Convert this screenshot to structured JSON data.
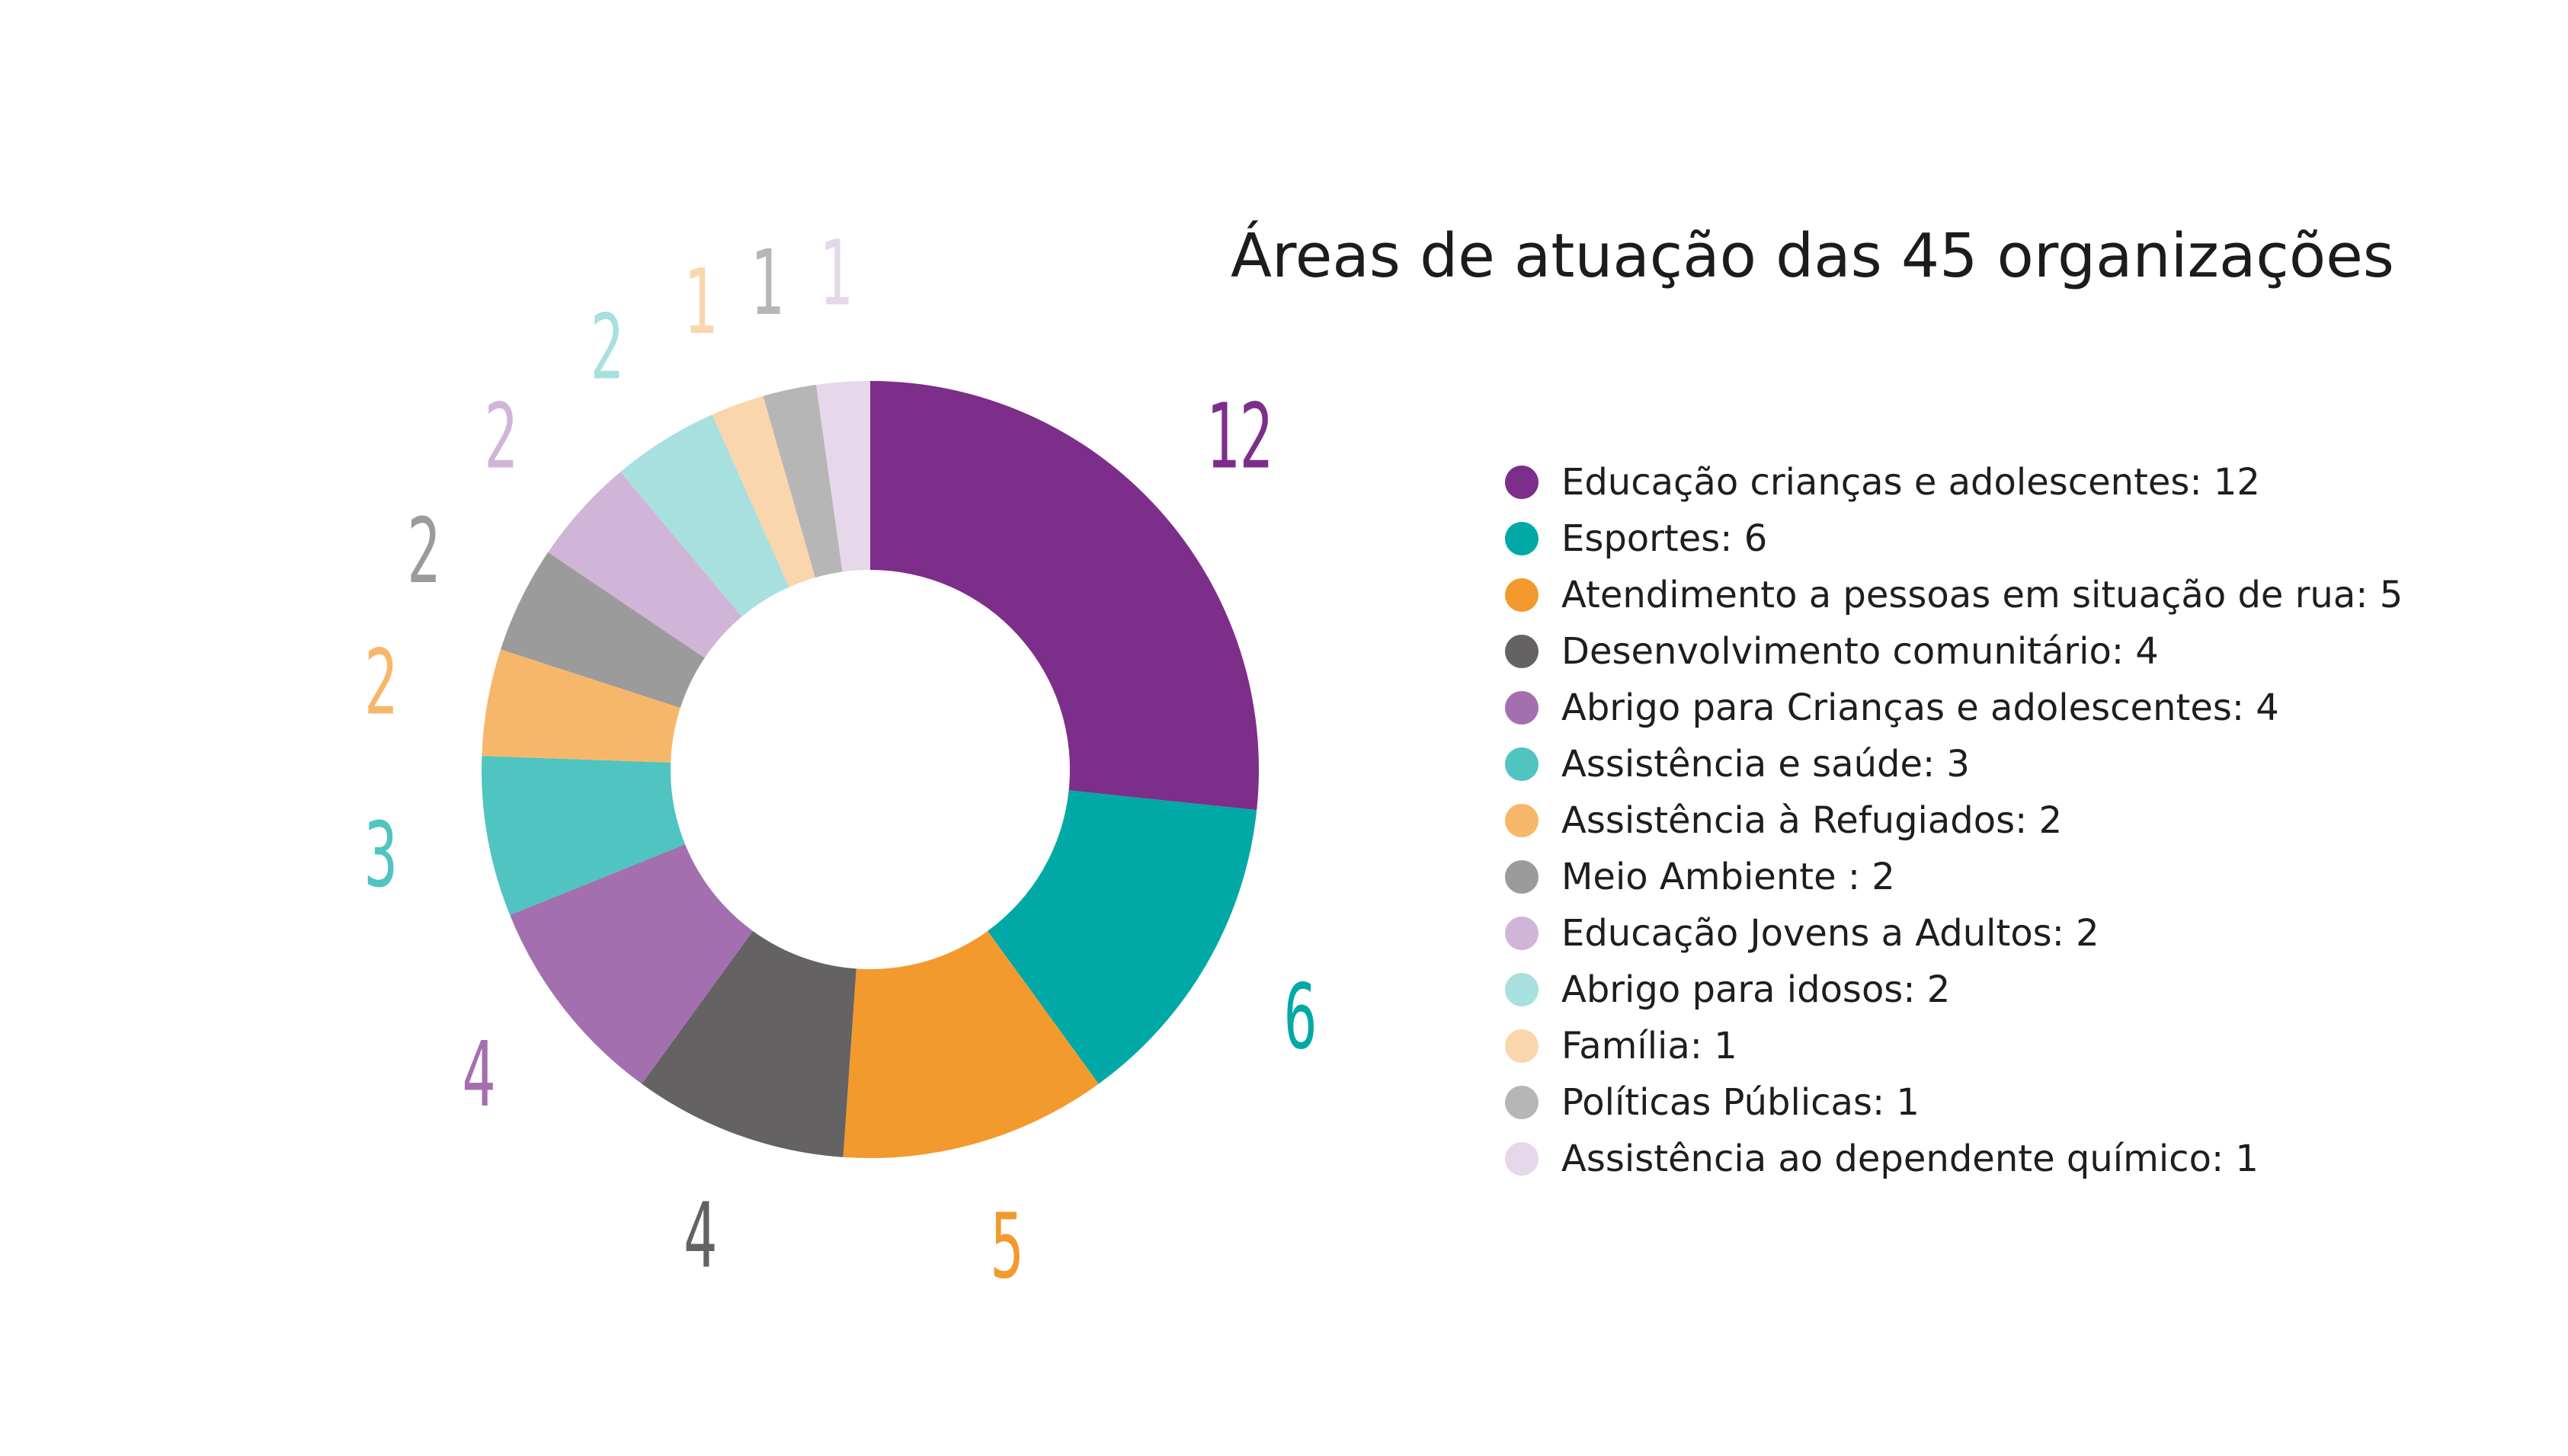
{
  "chart_data": {
    "type": "pie",
    "variant": "donut",
    "title": "Áreas de atuação das 45 organizações",
    "total": 45,
    "legend_position": "right",
    "slices": [
      {
        "label": "Educação crianças e adolescentes",
        "value": 12,
        "color": "#7D2E8A",
        "legend_text": "Educação crianças e adolescentes: 12",
        "value_label": "12"
      },
      {
        "label": "Esportes",
        "value": 6,
        "color": "#00A9A5",
        "legend_text": "Esportes: 6",
        "value_label": "6"
      },
      {
        "label": "Atendimento a pessoas em situação de rua",
        "value": 5,
        "color": "#F29A2E",
        "legend_text": "Atendimento a pessoas em situação de rua: 5",
        "value_label": "5"
      },
      {
        "label": "Desenvolvimento comunitário",
        "value": 4,
        "color": "#646262",
        "legend_text": "Desenvolvimento comunitário: 4",
        "value_label": "4"
      },
      {
        "label": "Abrigo para Crianças e adolescentes",
        "value": 4,
        "color": "#A46FAF",
        "legend_text": "Abrigo para Crianças e adolescentes: 4",
        "value_label": "4"
      },
      {
        "label": "Assistência e saúde",
        "value": 3,
        "color": "#4FC4C0",
        "legend_text": "Assistência e saúde: 3",
        "value_label": "3"
      },
      {
        "label": "Assistência à Refugiados",
        "value": 2,
        "color": "#F7B76B",
        "legend_text": "Assistência à Refugiados: 2",
        "value_label": "2"
      },
      {
        "label": "Meio Ambiente",
        "value": 2,
        "color": "#9C9B9B",
        "legend_text": "Meio Ambiente : 2",
        "value_label": "2"
      },
      {
        "label": "Educação Jovens a Adultos",
        "value": 2,
        "color": "#D1B5D8",
        "legend_text": "Educação Jovens a Adultos: 2",
        "value_label": "2"
      },
      {
        "label": "Abrigo para idosos",
        "value": 2,
        "color": "#A7E0DF",
        "legend_text": "Abrigo para idosos: 2",
        "value_label": "2"
      },
      {
        "label": "Família",
        "value": 1,
        "color": "#FAD6AC",
        "legend_text": "Família: 1",
        "value_label": "1"
      },
      {
        "label": "Políticas Públicas",
        "value": 1,
        "color": "#B7B6B6",
        "legend_text": "Políticas Públicas: 1",
        "value_label": "1"
      },
      {
        "label": "Assistência ao dependente químico",
        "value": 1,
        "color": "#E6D7EA",
        "legend_text": "Assistência ao dependente químico: 1",
        "value_label": "1"
      }
    ]
  }
}
